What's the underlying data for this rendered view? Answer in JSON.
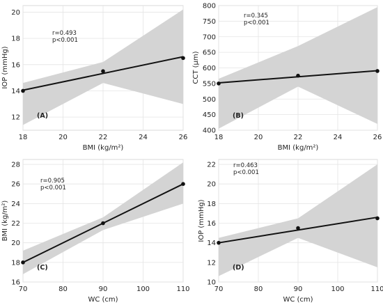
{
  "chart_data": [
    {
      "type": "line",
      "panel_label": "(A)",
      "xlabel": "BMI (kg/m²)",
      "ylabel": "IOP (mmHg)",
      "xlim": [
        18,
        26
      ],
      "ylim": [
        11,
        20.5
      ],
      "xticks": [
        18,
        20,
        22,
        24,
        26
      ],
      "yticks": [
        12,
        14,
        16,
        18,
        20
      ],
      "points": [
        {
          "x": 18,
          "y": 14.0
        },
        {
          "x": 22,
          "y": 15.5
        },
        {
          "x": 26,
          "y": 16.5
        }
      ],
      "fit": {
        "x": [
          18,
          26
        ],
        "y": [
          14.05,
          16.6
        ]
      },
      "ci_band": {
        "x": [
          18,
          22,
          26
        ],
        "lower": [
          11.4,
          14.6,
          13.0
        ],
        "upper": [
          14.6,
          16.2,
          20.2
        ]
      },
      "grid": true,
      "annotations": [
        "r=0.493",
        "p<0.001"
      ]
    },
    {
      "type": "line",
      "panel_label": "(B)",
      "xlabel": "BMI (kg/m²)",
      "ylabel": "CCT (µm)",
      "xlim": [
        18,
        26
      ],
      "ylim": [
        400,
        800
      ],
      "xticks": [
        18,
        20,
        22,
        24,
        26
      ],
      "yticks": [
        400,
        450,
        500,
        550,
        600,
        650,
        700,
        750,
        800
      ],
      "points": [
        {
          "x": 18,
          "y": 550
        },
        {
          "x": 22,
          "y": 575
        },
        {
          "x": 26,
          "y": 590
        }
      ],
      "fit": {
        "x": [
          18,
          26
        ],
        "y": [
          552,
          591
        ]
      },
      "ci_band": {
        "x": [
          18,
          22,
          26
        ],
        "lower": [
          405,
          540,
          420
        ],
        "upper": [
          565,
          670,
          795
        ]
      },
      "grid": true,
      "annotations": [
        "r=0.345",
        "p<0.001"
      ]
    },
    {
      "type": "line",
      "panel_label": "(C)",
      "xlabel": "WC (cm)",
      "ylabel": "BMI (kg/m²)",
      "xlim": [
        70,
        110
      ],
      "ylim": [
        16,
        28.5
      ],
      "xticks": [
        70,
        80,
        90,
        100,
        110
      ],
      "yticks": [
        16,
        18,
        20,
        22,
        24,
        26,
        28
      ],
      "points": [
        {
          "x": 70,
          "y": 18
        },
        {
          "x": 90,
          "y": 22
        },
        {
          "x": 110,
          "y": 26
        }
      ],
      "fit": {
        "x": [
          70,
          110
        ],
        "y": [
          18,
          26
        ]
      },
      "ci_band": {
        "x": [
          70,
          90,
          110
        ],
        "lower": [
          16.8,
          21.3,
          24.0
        ],
        "upper": [
          19.2,
          22.6,
          28.2
        ]
      },
      "grid": true,
      "annotations": [
        "r=0.905",
        "p<0.001"
      ]
    },
    {
      "type": "line",
      "panel_label": "(D)",
      "xlabel": "WC (cm)",
      "ylabel": "IOP (mmHg)",
      "xlim": [
        70,
        110
      ],
      "ylim": [
        10,
        22.5
      ],
      "xticks": [
        70,
        80,
        90,
        100,
        110
      ],
      "yticks": [
        10,
        12,
        14,
        16,
        18,
        20,
        22
      ],
      "points": [
        {
          "x": 70,
          "y": 14.0
        },
        {
          "x": 90,
          "y": 15.5
        },
        {
          "x": 110,
          "y": 16.5
        }
      ],
      "fit": {
        "x": [
          70,
          110
        ],
        "y": [
          14.0,
          16.6
        ]
      },
      "ci_band": {
        "x": [
          70,
          90,
          110
        ],
        "lower": [
          10.6,
          14.5,
          11.5
        ],
        "upper": [
          14.5,
          16.5,
          22.0
        ]
      },
      "grid": true,
      "annotations": [
        "r=0.463",
        "p<0.001"
      ]
    }
  ]
}
